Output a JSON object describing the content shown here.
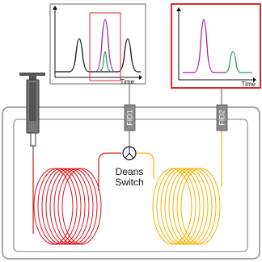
{
  "colors": {
    "outline": "#a8a8a8",
    "column1": "#e0141c",
    "column2": "#f4b400",
    "transfer_line_1": "#e0141c",
    "transfer_line_2": "#f4b400",
    "highlight_box": "#e0262c",
    "trace_black": "#111111",
    "peak_purple": "#a0289e",
    "peak_green": "#1ca05a",
    "detector": "#8a8a8a",
    "syringe": "#555555"
  },
  "chromatogram_1": {
    "x_label": "Time"
  },
  "chromatogram_2": {
    "x_label": "Time"
  },
  "detector_1": {
    "label": "FID1"
  },
  "detector_2": {
    "label": "FID2"
  },
  "switch": {
    "line1": "Deans",
    "line2": "Switch"
  },
  "icons": [
    "syringe-icon",
    "valve-icon",
    "detector-icon",
    "coil-column-icon"
  ]
}
